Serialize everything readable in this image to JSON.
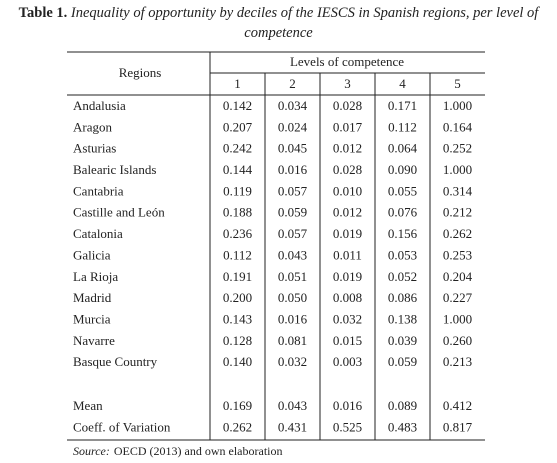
{
  "caption": {
    "label": "Table 1.",
    "text": "Inequality of opportunity by deciles of the IESCS in Spanish regions, per level of competence"
  },
  "table": {
    "row_header": "Regions",
    "column_group": "Levels of competence",
    "columns": [
      "1",
      "2",
      "3",
      "4",
      "5"
    ],
    "rows": [
      [
        "Andalusia",
        "0.142",
        "0.034",
        "0.028",
        "0.171",
        "1.000"
      ],
      [
        "Aragon",
        "0.207",
        "0.024",
        "0.017",
        "0.112",
        "0.164"
      ],
      [
        "Asturias",
        "0.242",
        "0.045",
        "0.012",
        "0.064",
        "0.252"
      ],
      [
        "Balearic Islands",
        "0.144",
        "0.016",
        "0.028",
        "0.090",
        "1.000"
      ],
      [
        "Cantabria",
        "0.119",
        "0.057",
        "0.010",
        "0.055",
        "0.314"
      ],
      [
        "Castille and León",
        "0.188",
        "0.059",
        "0.012",
        "0.076",
        "0.212"
      ],
      [
        "Catalonia",
        "0.236",
        "0.057",
        "0.019",
        "0.156",
        "0.262"
      ],
      [
        "Galicia",
        "0.112",
        "0.043",
        "0.011",
        "0.053",
        "0.253"
      ],
      [
        "La Rioja",
        "0.191",
        "0.051",
        "0.019",
        "0.052",
        "0.204"
      ],
      [
        "Madrid",
        "0.200",
        "0.050",
        "0.008",
        "0.086",
        "0.227"
      ],
      [
        "Murcia",
        "0.143",
        "0.016",
        "0.032",
        "0.138",
        "1.000"
      ],
      [
        "Navarre",
        "0.128",
        "0.081",
        "0.015",
        "0.039",
        "0.260"
      ],
      [
        "Basque Country",
        "0.140",
        "0.032",
        "0.003",
        "0.059",
        "0.213"
      ]
    ],
    "summary_rows": [
      [
        "Mean",
        "0.169",
        "0.043",
        "0.016",
        "0.089",
        "0.412"
      ],
      [
        "Coeff. of Variation",
        "0.262",
        "0.431",
        "0.525",
        "0.483",
        "0.817"
      ]
    ]
  },
  "source": {
    "label": "Source:",
    "text": "OECD (2013) and own elaboration"
  }
}
